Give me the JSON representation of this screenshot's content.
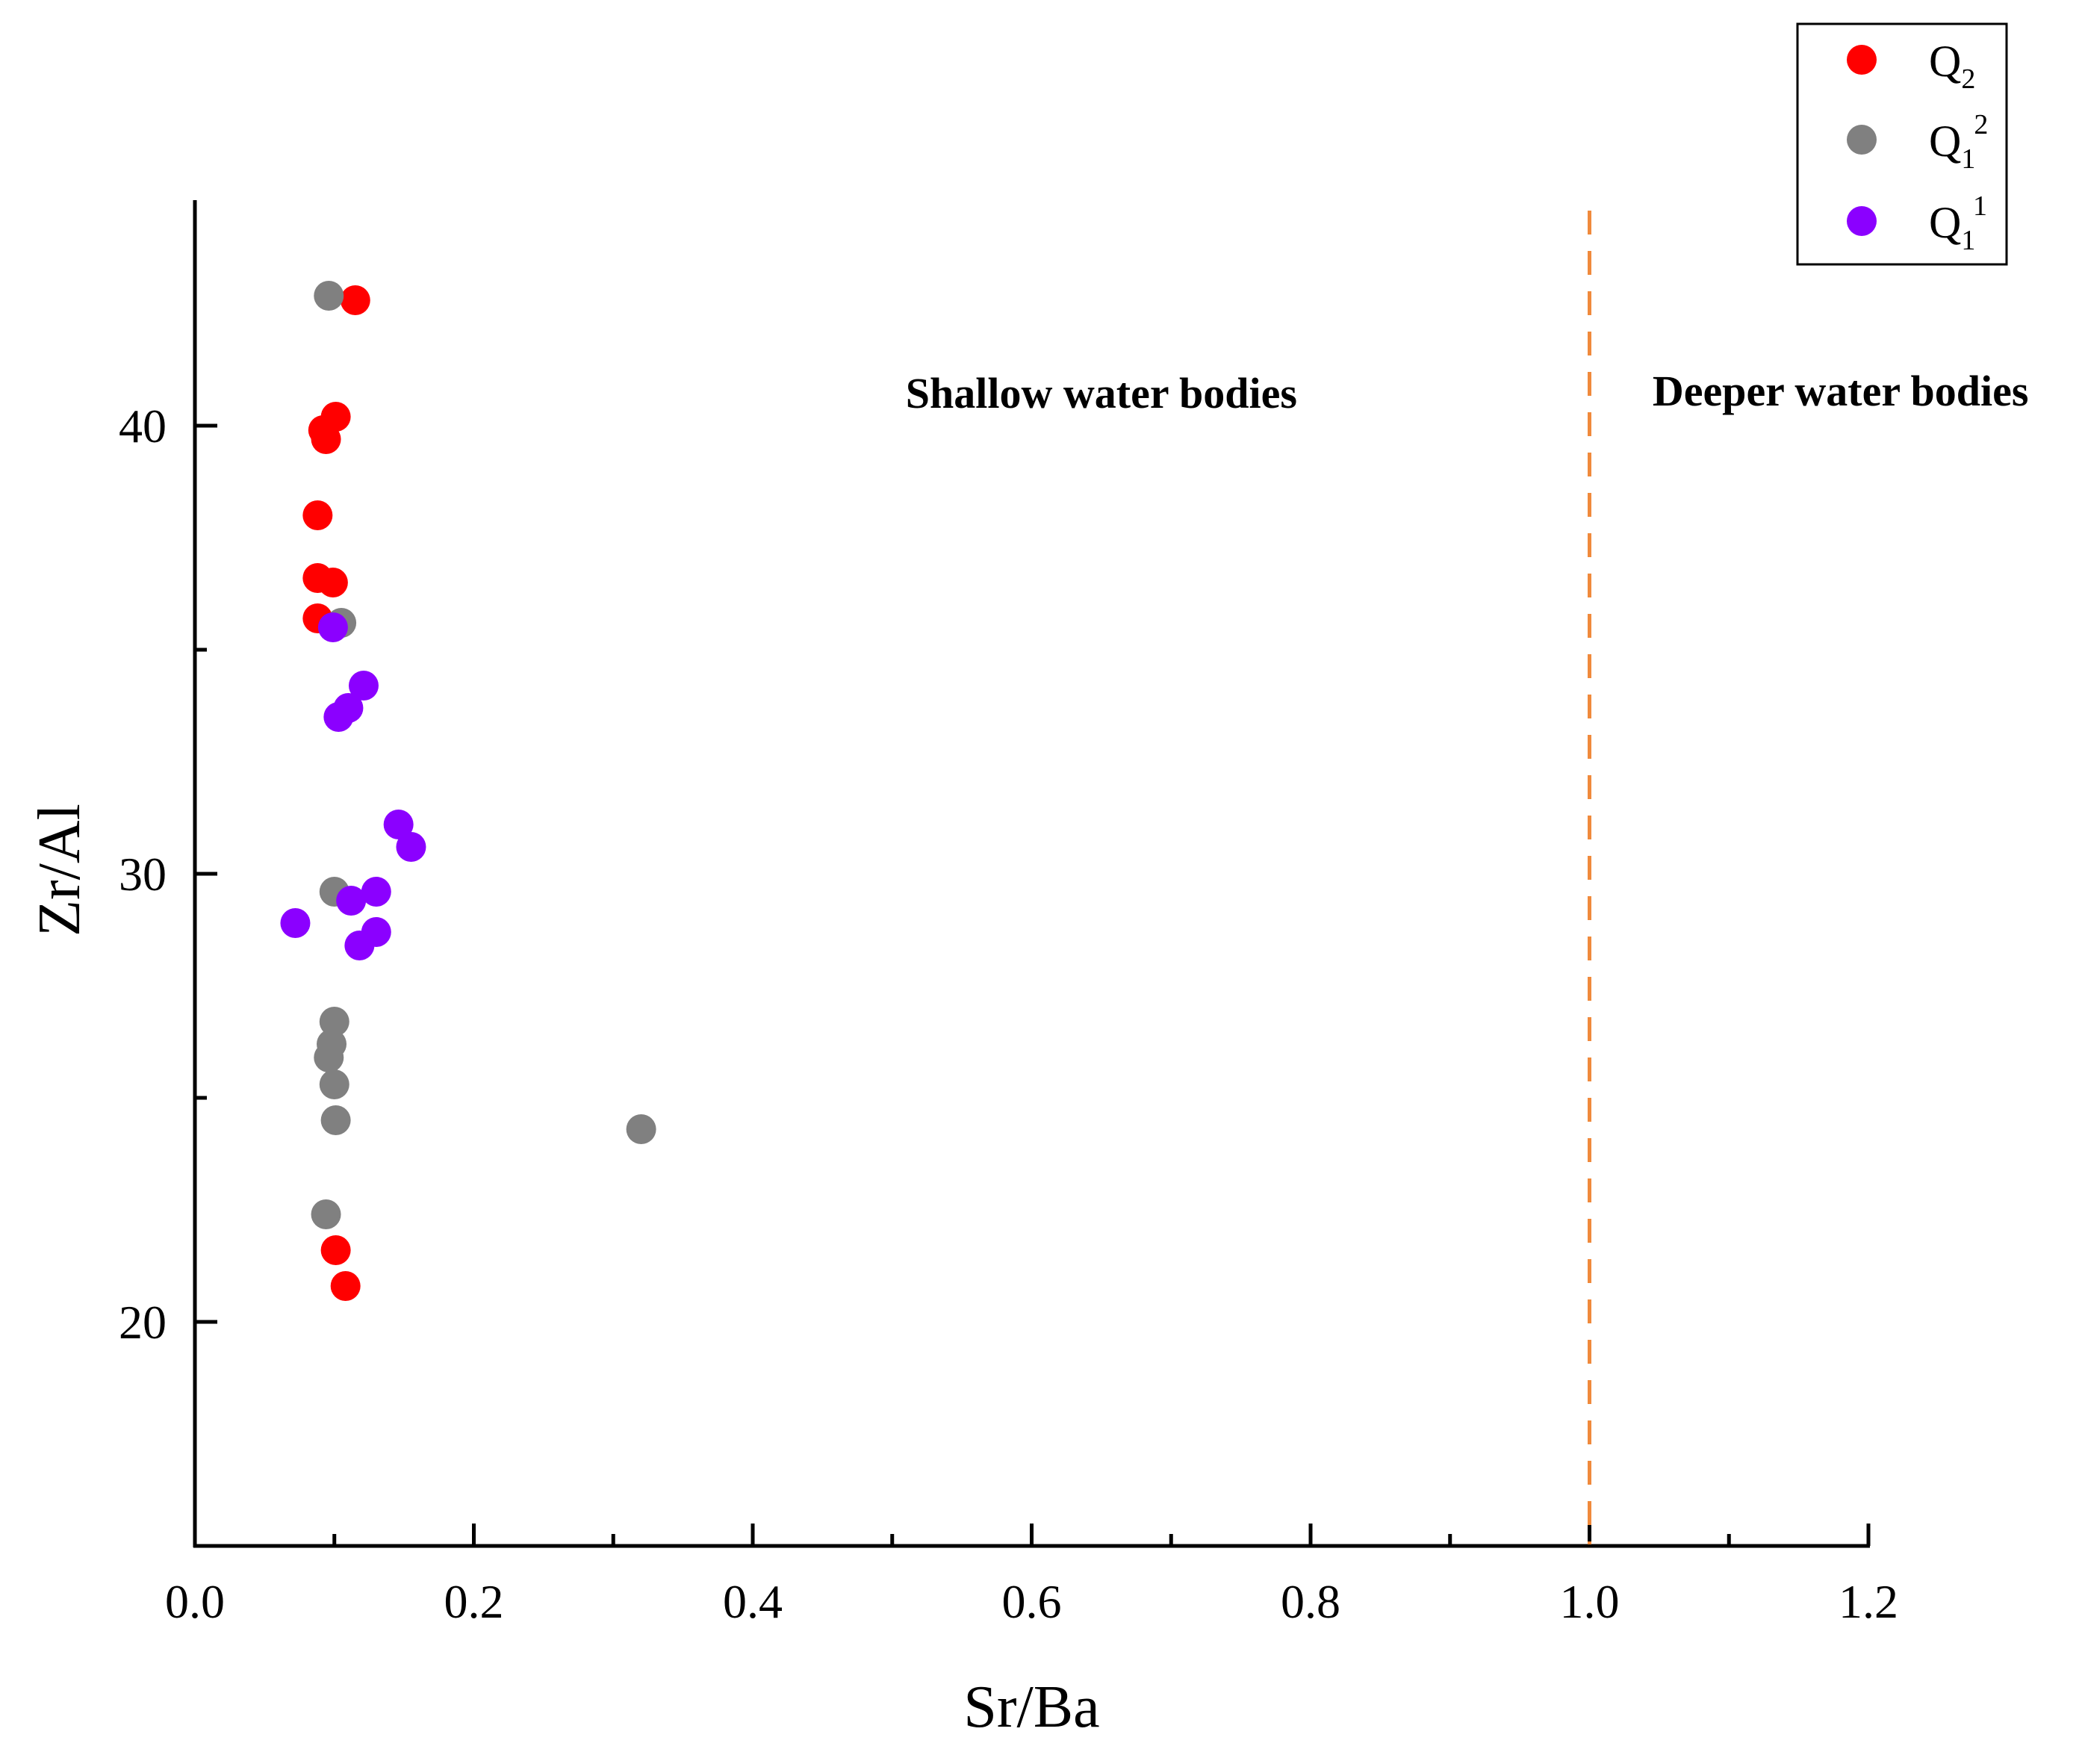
{
  "chart_data": {
    "type": "scatter",
    "title": "",
    "xlabel": "Sr/Ba",
    "ylabel": "Zr/Al",
    "xlim": [
      0.0,
      1.2
    ],
    "ylim": [
      15,
      45
    ],
    "xticks": [
      {
        "value": 0.0,
        "label": "0.0"
      },
      {
        "value": 0.2,
        "label": "0.2"
      },
      {
        "value": 0.4,
        "label": "0.4"
      },
      {
        "value": 0.6,
        "label": "0.6"
      },
      {
        "value": 0.8,
        "label": "0.8"
      },
      {
        "value": 1.0,
        "label": "1.0"
      },
      {
        "value": 1.2,
        "label": "1.2"
      }
    ],
    "xminor": [
      0.1,
      0.3,
      0.5,
      0.7,
      0.9,
      1.1
    ],
    "yticks": [
      {
        "value": 20,
        "label": "20"
      },
      {
        "value": 30,
        "label": "30"
      },
      {
        "value": 40,
        "label": "40"
      }
    ],
    "yminor": [
      25,
      35
    ],
    "threshold": {
      "x": 1.0,
      "color": "#F08A3C",
      "style": "dashed"
    },
    "regions": [
      {
        "label": "Shallow water bodies",
        "x": 0.65,
        "y": 40.7
      },
      {
        "label": "Deeper water bodies",
        "x": 1.18,
        "y": 40.7
      }
    ],
    "legend_position": "top-right",
    "series": [
      {
        "name": "Q2",
        "legend_main": "Q",
        "legend_sub": "2",
        "legend_sup": "",
        "color": "#FF0000",
        "points": [
          {
            "x": 0.115,
            "y": 42.8
          },
          {
            "x": 0.101,
            "y": 40.2
          },
          {
            "x": 0.092,
            "y": 39.9
          },
          {
            "x": 0.094,
            "y": 39.7
          },
          {
            "x": 0.088,
            "y": 38.0
          },
          {
            "x": 0.088,
            "y": 36.6
          },
          {
            "x": 0.099,
            "y": 36.5
          },
          {
            "x": 0.088,
            "y": 35.7
          },
          {
            "x": 0.101,
            "y": 21.6
          },
          {
            "x": 0.108,
            "y": 20.8
          }
        ]
      },
      {
        "name": "Q1^2",
        "legend_main": "Q",
        "legend_sub": "1",
        "legend_sup": "2",
        "color": "#808080",
        "points": [
          {
            "x": 0.096,
            "y": 42.9
          },
          {
            "x": 0.105,
            "y": 35.6
          },
          {
            "x": 0.1,
            "y": 29.6
          },
          {
            "x": 0.1,
            "y": 26.7
          },
          {
            "x": 0.098,
            "y": 26.2
          },
          {
            "x": 0.096,
            "y": 25.9
          },
          {
            "x": 0.1,
            "y": 25.3
          },
          {
            "x": 0.101,
            "y": 24.5
          },
          {
            "x": 0.094,
            "y": 22.4
          },
          {
            "x": 0.32,
            "y": 24.3
          }
        ]
      },
      {
        "name": "Q1^1",
        "legend_main": "Q",
        "legend_sub": "1",
        "legend_sup": "1",
        "color": "#8B00FF",
        "points": [
          {
            "x": 0.099,
            "y": 35.5
          },
          {
            "x": 0.121,
            "y": 34.2
          },
          {
            "x": 0.11,
            "y": 33.7
          },
          {
            "x": 0.103,
            "y": 33.5
          },
          {
            "x": 0.146,
            "y": 31.1
          },
          {
            "x": 0.155,
            "y": 30.6
          },
          {
            "x": 0.072,
            "y": 28.9
          },
          {
            "x": 0.112,
            "y": 29.4
          },
          {
            "x": 0.13,
            "y": 29.6
          },
          {
            "x": 0.13,
            "y": 28.7
          },
          {
            "x": 0.118,
            "y": 28.4
          }
        ]
      }
    ]
  }
}
